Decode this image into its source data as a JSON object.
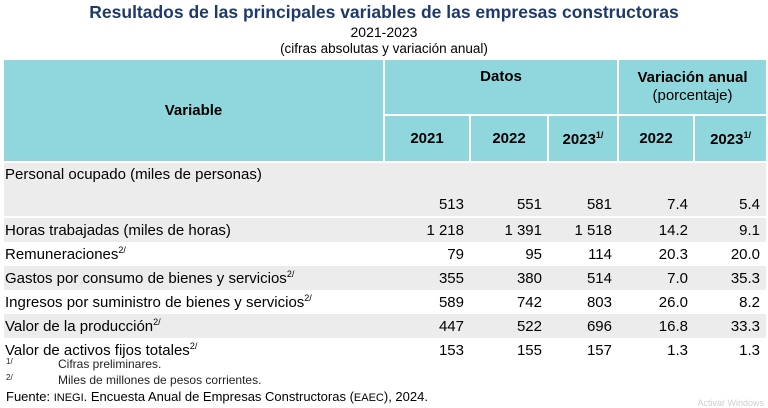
{
  "title": "Resultados de las principales variables de las empresas constructoras",
  "subtitle": "2021-2023",
  "note": "(cifras absolutas y variación anual)",
  "header": {
    "variable": "Variable",
    "datos": "Datos",
    "variacion": "Variación anual",
    "porcentaje": "(porcentaje)",
    "y2021": "2021",
    "y2022": "2022",
    "y2023": "2023",
    "sup1": "1/",
    "v2022": "2022",
    "v2023": "2023"
  },
  "rows": [
    {
      "label": "Personal ocupado (miles de personas)",
      "sup": "",
      "v2021": "513",
      "v2022": "551",
      "v2023": "581",
      "var2022": "7.4",
      "var2023": "5.4"
    },
    {
      "label": "Horas trabajadas (miles de horas)",
      "sup": "",
      "v2021": "1 218",
      "v2022": "1 391",
      "v2023": "1 518",
      "var2022": "14.2",
      "var2023": "9.1"
    },
    {
      "label": "Remuneraciones",
      "sup": "2/",
      "v2021": "79",
      "v2022": "95",
      "v2023": "114",
      "var2022": "20.3",
      "var2023": "20.0"
    },
    {
      "label": "Gastos por consumo de bienes y servicios",
      "sup": "2/",
      "v2021": "355",
      "v2022": "380",
      "v2023": "514",
      "var2022": "7.0",
      "var2023": "35.3"
    },
    {
      "label": "Ingresos por suministro de bienes y servicios",
      "sup": "2/",
      "v2021": "589",
      "v2022": "742",
      "v2023": "803",
      "var2022": "26.0",
      "var2023": "8.2"
    },
    {
      "label": "Valor de la producción",
      "sup": "2/",
      "v2021": "447",
      "v2022": "522",
      "v2023": "696",
      "var2022": "16.8",
      "var2023": "33.3"
    },
    {
      "label": "Valor de activos fijos totales",
      "sup": "2/",
      "v2021": "153",
      "v2022": "155",
      "v2023": "157",
      "var2022": "1.3",
      "var2023": "1.3"
    }
  ],
  "footnotes": [
    {
      "mark": "1/",
      "text": "Cifras preliminares."
    },
    {
      "mark": "2/",
      "text": "Miles de millones de pesos corrientes."
    }
  ],
  "source": {
    "prefix": "Fuente: ",
    "org": "INEGI",
    "middle": ". Encuesta Anual de Empresas Constructoras (",
    "abbr": "EAEC",
    "suffix": "), 2024."
  },
  "watermark": "Activar Windows"
}
